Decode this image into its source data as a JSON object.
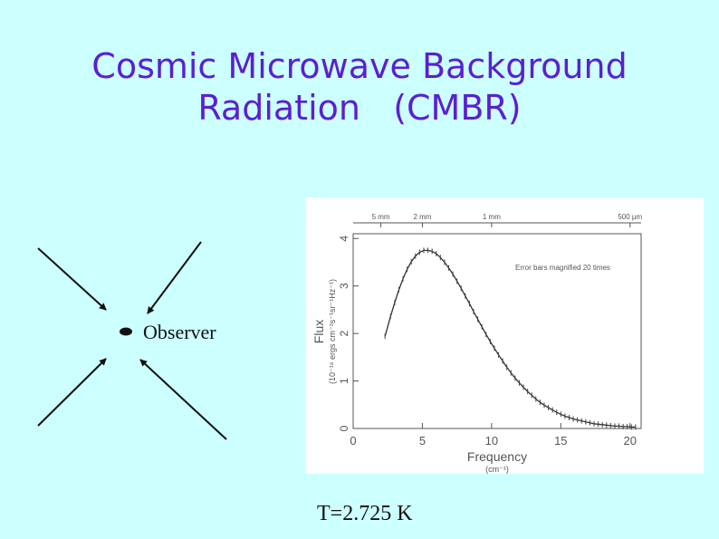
{
  "slide": {
    "title_lines": [
      "Cosmic Microwave Background",
      "Radiation   (CMBR)"
    ],
    "observer_label": "Observer",
    "caption": "T=2.725 K",
    "colors": {
      "background": "#ccffff",
      "title": "#5b1fd1",
      "ink": "#111111"
    }
  },
  "chart_data": {
    "type": "line",
    "title": "",
    "xlabel": "Frequency",
    "xlabel_unit": "(cm⁻¹)",
    "ylabel": "Flux",
    "ylabel_unit": "(10⁻¹⁸ ergs cm⁻²s⁻¹sr⁻¹Hz⁻¹)",
    "xlim": [
      0,
      20.8
    ],
    "ylim": [
      0,
      4.1
    ],
    "x_ticks": [
      0,
      5,
      10,
      15,
      20
    ],
    "y_ticks": [
      0,
      1,
      2,
      3,
      4
    ],
    "top_axis_labels": [
      {
        "label": "5 mm",
        "x": 2
      },
      {
        "label": "2 mm",
        "x": 5
      },
      {
        "label": "1 mm",
        "x": 10
      },
      {
        "label": "500 µm",
        "x": 20
      }
    ],
    "annotation": "Error bars magnified 20 times",
    "grid": false,
    "series": [
      {
        "x": [
          2.3,
          2.7,
          3.0,
          3.3,
          3.6,
          3.9,
          4.2,
          4.5,
          4.8,
          5.1,
          5.4,
          5.7,
          6.0,
          6.3,
          6.6,
          6.9,
          7.2,
          7.5,
          7.8,
          8.1,
          8.4,
          8.7,
          9.0,
          9.3,
          9.6,
          9.9,
          10.2,
          10.5,
          10.8,
          11.1,
          11.4,
          11.7,
          12.0,
          12.3,
          12.6,
          12.9,
          13.2,
          13.5,
          13.8,
          14.1,
          14.4,
          14.7,
          15.0,
          15.3,
          15.6,
          15.9,
          16.2,
          16.5,
          16.8,
          17.1,
          17.4,
          17.7,
          18.0,
          18.3,
          18.6,
          18.9,
          19.2,
          19.5,
          19.8,
          20.1,
          20.4
        ],
        "y": [
          1.94,
          2.36,
          2.65,
          2.92,
          3.15,
          3.35,
          3.51,
          3.63,
          3.71,
          3.75,
          3.75,
          3.73,
          3.68,
          3.6,
          3.5,
          3.38,
          3.25,
          3.1,
          2.95,
          2.79,
          2.63,
          2.46,
          2.3,
          2.14,
          1.98,
          1.83,
          1.69,
          1.55,
          1.42,
          1.29,
          1.17,
          1.06,
          0.96,
          0.87,
          0.78,
          0.7,
          0.62,
          0.55,
          0.49,
          0.44,
          0.39,
          0.34,
          0.3,
          0.26,
          0.23,
          0.2,
          0.18,
          0.16,
          0.14,
          0.12,
          0.1,
          0.09,
          0.08,
          0.07,
          0.06,
          0.05,
          0.05,
          0.04,
          0.04,
          0.03,
          0.03
        ]
      }
    ]
  }
}
